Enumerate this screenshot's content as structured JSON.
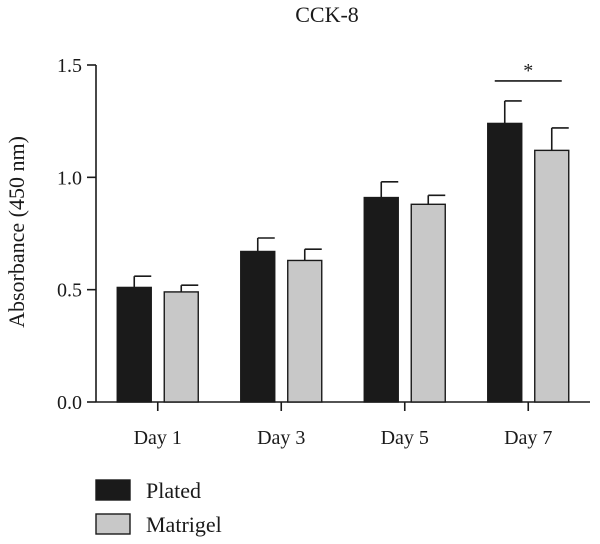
{
  "chart_data": {
    "type": "bar",
    "title": "CCK-8",
    "xlabel": "",
    "ylabel": "Absorbance (450 nm)",
    "ylim": [
      0,
      1.5
    ],
    "yticks": [
      0.0,
      0.5,
      1.0,
      1.5
    ],
    "ytick_labels": [
      "0.0",
      "0.5",
      "1.0",
      "1.5"
    ],
    "categories": [
      "Day 1",
      "Day 3",
      "Day 5",
      "Day 7"
    ],
    "series": [
      {
        "name": "Plated",
        "color": "#1a1a1a",
        "values": [
          0.51,
          0.67,
          0.91,
          1.24
        ],
        "errors": [
          0.05,
          0.06,
          0.07,
          0.1
        ]
      },
      {
        "name": "Matrigel",
        "color": "#c8c8c8",
        "values": [
          0.49,
          0.63,
          0.88,
          1.12
        ],
        "errors": [
          0.03,
          0.05,
          0.04,
          0.1
        ]
      }
    ],
    "annotations": [
      {
        "category": "Day 7",
        "text": "*"
      }
    ],
    "legend_position": "bottom-left",
    "grid": false
  }
}
